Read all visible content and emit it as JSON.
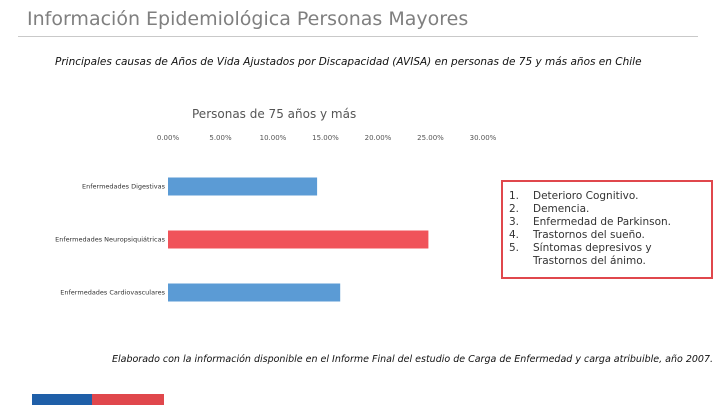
{
  "page": {
    "title": "Información Epidemiológica Personas Mayores",
    "subtitle": "Principales causas de Años de Vida Ajustados por Discapacidad (AVISA) en personas de 75 y más años en Chile",
    "footnote": "Elaborado con la información disponible en el Informe Final del estudio de Carga de Enfermedad y carga atribuible, año 2007."
  },
  "chart_data": {
    "type": "bar",
    "orientation": "horizontal",
    "title": "Personas de 75 años y más",
    "categories": [
      "Enfermedades Digestivas",
      "Enfermedades Neuropsiquiátricas",
      "Enfermedades Cardiovasculares"
    ],
    "values": [
      0.142,
      0.248,
      0.164
    ],
    "bar_colors": [
      "#5b9bd5",
      "#f0535a",
      "#5b9bd5"
    ],
    "xlim": [
      0,
      0.3
    ],
    "ticks": [
      0,
      0.05,
      0.1,
      0.15,
      0.2,
      0.25,
      0.3
    ],
    "tick_labels": [
      "0.00%",
      "5.00%",
      "10.00%",
      "15.00%",
      "20.00%",
      "25.00%",
      "30.00%"
    ],
    "xaxis_position": "top",
    "grid": false
  },
  "legend_box": {
    "items": [
      {
        "num": "1.",
        "text": "Deterioro Cognitivo."
      },
      {
        "num": "2.",
        "text": "Demencia."
      },
      {
        "num": "3.",
        "text": "Enfermedad de Parkinson."
      },
      {
        "num": "4.",
        "text": "Trastornos del sueño."
      },
      {
        "num": "5.",
        "text": "Síntomas depresivos y Trastornos del ánimo."
      }
    ]
  },
  "colors": {
    "accent_blue": "#1f5fa8",
    "accent_red": "#e0474c"
  }
}
